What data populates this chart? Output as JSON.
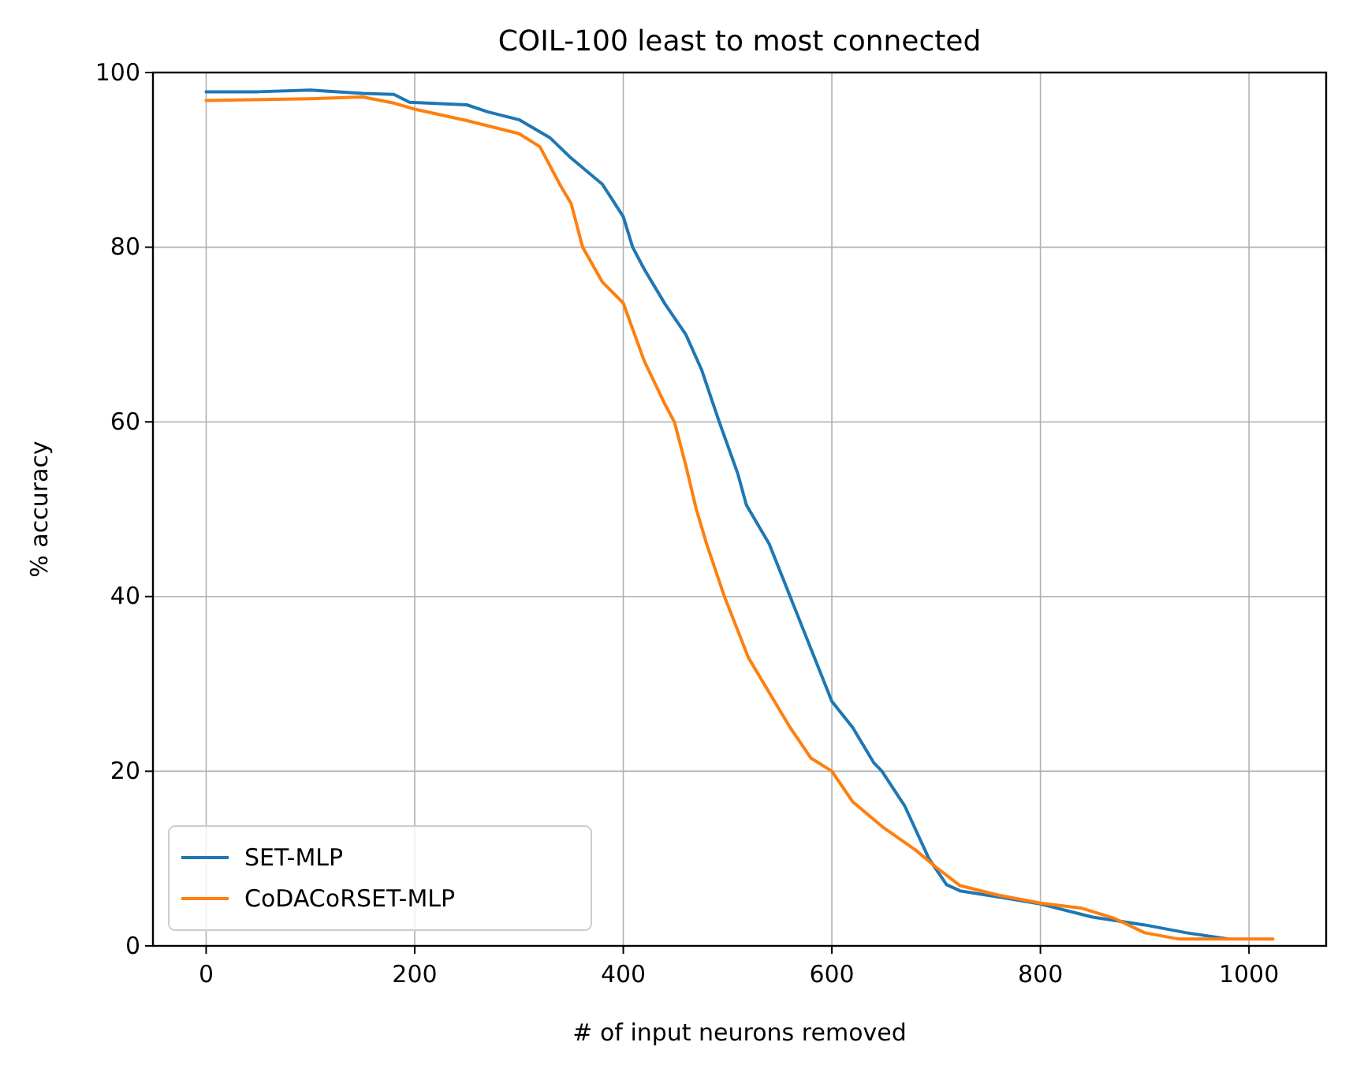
{
  "chart_data": {
    "type": "line",
    "title": "COIL-100 least to most connected",
    "xlabel": "# of input neurons removed",
    "ylabel": "% accuracy",
    "xlim": [
      -51,
      1074
    ],
    "xticks": [
      0,
      200,
      400,
      600,
      800,
      1000
    ],
    "ylim": [
      0,
      100
    ],
    "yticks": [
      0,
      20,
      40,
      60,
      80,
      100
    ],
    "grid": true,
    "legend": "bottom left",
    "series": [
      {
        "name": "SET-MLP",
        "color": "#1f77b4",
        "x": [
          0,
          50,
          100,
          150,
          180,
          195,
          250,
          270,
          300,
          330,
          350,
          380,
          400,
          409,
          420,
          440,
          460,
          475,
          492,
          510,
          518,
          540,
          560,
          580,
          600,
          620,
          640,
          648,
          670,
          693,
          710,
          723,
          760,
          800,
          850,
          900,
          940,
          980
        ],
        "values": [
          97.8,
          97.8,
          98.0,
          97.6,
          97.5,
          96.6,
          96.3,
          95.5,
          94.6,
          92.5,
          90.2,
          87.2,
          83.5,
          80,
          77.5,
          73.5,
          70,
          66,
          60,
          54,
          50.5,
          46,
          40,
          34,
          28,
          25,
          21,
          20,
          16,
          10,
          7,
          6.3,
          5.6,
          4.8,
          3.3,
          2.4,
          1.5,
          0.8
        ]
      },
      {
        "name": "CoDACoRSET-MLP",
        "color": "#ff7f0e",
        "x": [
          0,
          100,
          150,
          180,
          200,
          250,
          300,
          320,
          340,
          350,
          361,
          380,
          400,
          420,
          440,
          449,
          460,
          470,
          480,
          497,
          520,
          540,
          560,
          580,
          600,
          620,
          650,
          680,
          700,
          723,
          760,
          800,
          840,
          870,
          900,
          932,
          1023
        ],
        "values": [
          96.8,
          97.0,
          97.2,
          96.5,
          95.8,
          94.5,
          93.0,
          91.5,
          87,
          85,
          80,
          76,
          73.6,
          67,
          62,
          60,
          55,
          50,
          46,
          40,
          33,
          29,
          25,
          21.5,
          20,
          16.5,
          13.5,
          11,
          9,
          6.9,
          5.8,
          4.9,
          4.3,
          3.2,
          1.5,
          0.8,
          0.8
        ]
      }
    ]
  }
}
